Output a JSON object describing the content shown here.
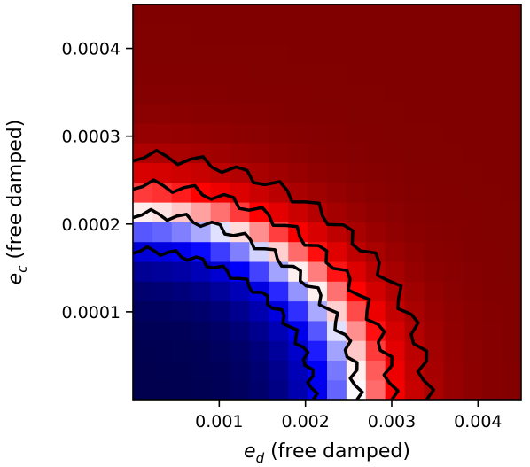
{
  "chart_data": {
    "type": "heatmap",
    "title": "",
    "xlabel": {
      "symbol": "e",
      "sub": "d",
      "text": " (free damped)"
    },
    "ylabel": {
      "symbol": "e",
      "sub": "c",
      "text": " (free damped)"
    },
    "xlim": [
      0.0,
      0.0045
    ],
    "ylim": [
      0.0,
      0.00045
    ],
    "x_ticks": [
      {
        "value": 0.001,
        "label": "0.001"
      },
      {
        "value": 0.002,
        "label": "0.002"
      },
      {
        "value": 0.003,
        "label": "0.003"
      },
      {
        "value": 0.004,
        "label": "0.004"
      }
    ],
    "y_ticks": [
      {
        "value": 0.0001,
        "label": "0.0001"
      },
      {
        "value": 0.0002,
        "label": "0.0002"
      },
      {
        "value": 0.0003,
        "label": "0.0003"
      },
      {
        "value": 0.0004,
        "label": "0.0004"
      }
    ],
    "grid": {
      "nx": 20,
      "ny": 20
    },
    "colormap": "bwr",
    "colors": {
      "low": "#00004d",
      "mid": "#ffffff",
      "high": "#800000"
    },
    "contour_levels": [
      0.2,
      0.5,
      0.75,
      0.9
    ]
  }
}
